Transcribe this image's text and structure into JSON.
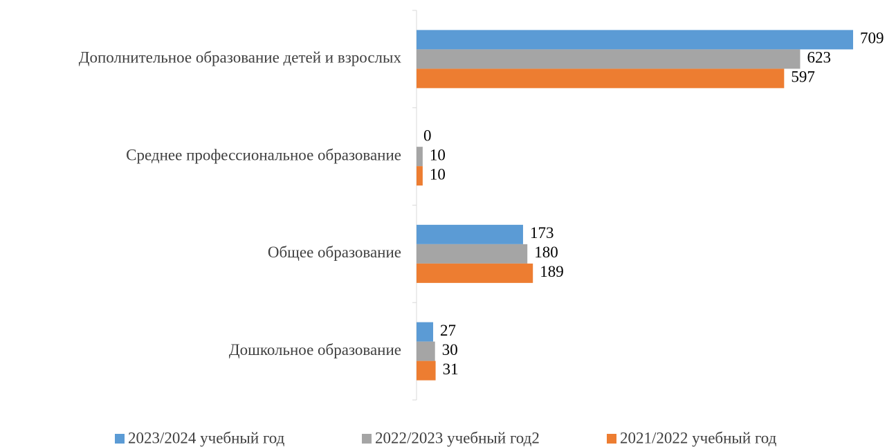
{
  "chart_data": {
    "type": "hbar",
    "categories": [
      "Дополнительное образование детей и взрослых",
      "Среднее профессиональное образование",
      "Общее образование",
      "Дошкольное образование"
    ],
    "series": [
      {
        "name": "2023/2024 учебный год",
        "color": "#5b9bd5",
        "values": [
          709,
          0,
          173,
          27
        ]
      },
      {
        "name": "2022/2023 учебный год2",
        "color": "#a5a5a5",
        "values": [
          623,
          10,
          180,
          30
        ]
      },
      {
        "name": "2021/2022 учебный год",
        "color": "#ed7d31",
        "values": [
          597,
          10,
          189,
          31
        ]
      }
    ],
    "legend": "bottom"
  }
}
